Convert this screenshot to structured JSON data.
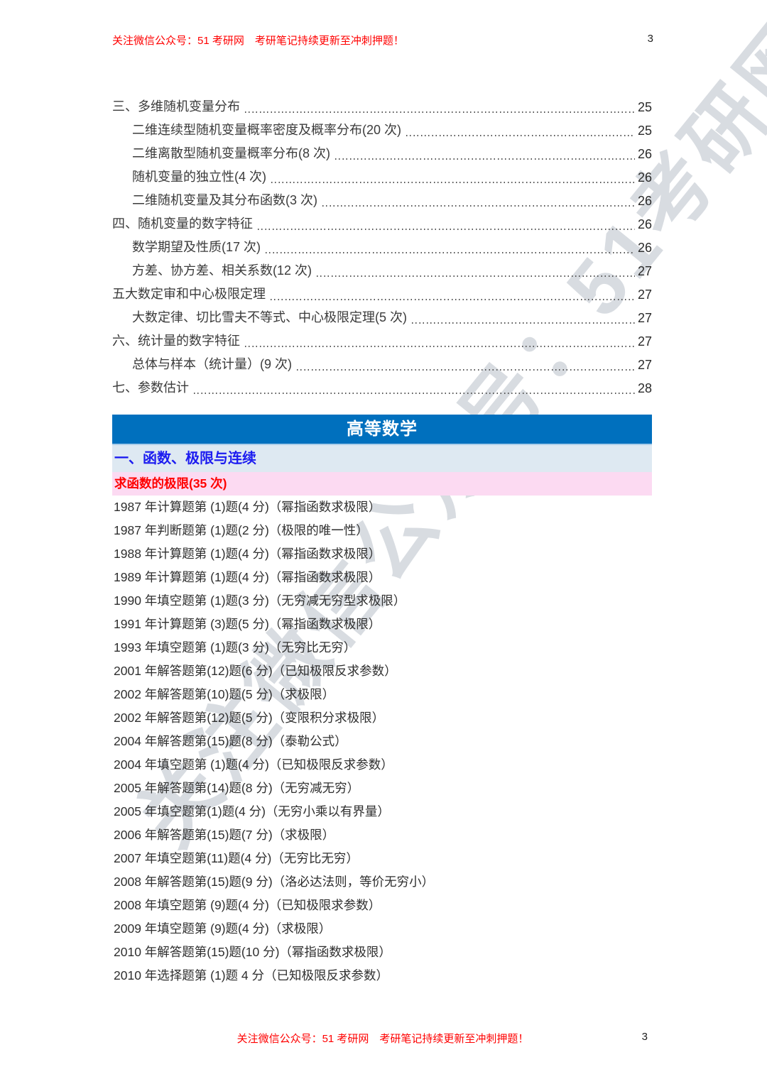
{
  "page": {
    "number": "3",
    "header_text": "关注微信公众号：51 考研网　考研笔记持续更新至冲刺押题！",
    "footer_text": "关注微信公众号：51 考研网　考研笔记持续更新至冲刺押题！",
    "watermark_text": "关注微信公众号：51考研网"
  },
  "colors": {
    "accent_red": "#ff0000",
    "banner_blue": "#0070be",
    "banner_edge_light_blue": "#aacde9",
    "chapter_bg_light_blue": "#dee9f2",
    "chapter_text_blue": "#1c1cf0",
    "topic_bg_pink": "#fcdaf2",
    "body_text": "#2e2e2e"
  },
  "toc": {
    "items": [
      {
        "label": "三、多维随机变量分布",
        "page": "25",
        "level": 1
      },
      {
        "label": "二维连续型随机变量概率密度及概率分布(20 次)",
        "page": "25",
        "level": 2
      },
      {
        "label": "二维离散型随机变量概率分布(8 次)",
        "page": "26",
        "level": 2
      },
      {
        "label": "随机变量的独立性(4 次)",
        "page": "26",
        "level": 2
      },
      {
        "label": "二维随机变量及其分布函数(3 次)",
        "page": "26",
        "level": 2
      },
      {
        "label": "四、随机变量的数字特征",
        "page": "26",
        "level": 1
      },
      {
        "label": "数学期望及性质(17 次)",
        "page": "26",
        "level": 2
      },
      {
        "label": "方差、协方差、相关系数(12 次)",
        "page": "27",
        "level": 2
      },
      {
        "label": "五大数定审和中心极限定理",
        "page": "27",
        "level": 1
      },
      {
        "label": "大数定律、切比雪夫不等式、中心极限定理(5 次)",
        "page": "27",
        "level": 2
      },
      {
        "label": "六、统计量的数字特征",
        "page": "27",
        "level": 1
      },
      {
        "label": "总体与样本（统计量）(9 次)",
        "page": "27",
        "level": 2
      },
      {
        "label": "七、参数估计",
        "page": "28",
        "level": 1
      }
    ]
  },
  "section": {
    "banner_title": "高等数学",
    "chapter_title": "一、函数、极限与连续",
    "topic_title": "求函数的极限(35 次)"
  },
  "entries": [
    "1987 年计算题第 (1)题(4 分)（幂指函数求极限）",
    "1987 年判断题第 (1)题(2 分)（极限的唯一性）",
    "1988 年计算题第 (1)题(4 分)（幂指函数求极限）",
    "1989 年计算题第 (1)题(4 分)（幂指函数求极限）",
    "1990 年填空题第 (1)题(3 分)（无穷减无穷型求极限）",
    "1991 年计算题第 (3)题(5 分)（幂指函数求极限）",
    "1993 年填空题第 (1)题(3 分)（无穷比无穷）",
    "2001 年解答题第(12)题(6 分)（已知极限反求参数）",
    "2002 年解答题第(10)题(5 分)（求极限）",
    "2002 年解答题第(12)题(5 分)（变限积分求极限）",
    "2004 年解答题第(15)题(8 分)（泰勒公式）",
    "2004 年填空题第 (1)题(4 分)（已知极限反求参数）",
    "2005 年解答题第(14)题(8 分)（无穷减无穷）",
    "2005 年填空题第(1)题(4 分)（无穷小乘以有界量）",
    "2006 年解答题第(15)题(7 分)（求极限）",
    "2007 年填空题第(11)题(4 分)（无穷比无穷）",
    "2008 年解答题第(15)题(9 分)（洛必达法则，等价无穷小）",
    "2008 年填空题第 (9)题(4 分)（已知极限求参数）",
    "2009 年填空题第 (9)题(4 分)（求极限）",
    "2010 年解答题第(15)题(10 分)（幂指函数求极限）",
    "2010 年选择题第 (1)题 4 分（已知极限反求参数）"
  ]
}
